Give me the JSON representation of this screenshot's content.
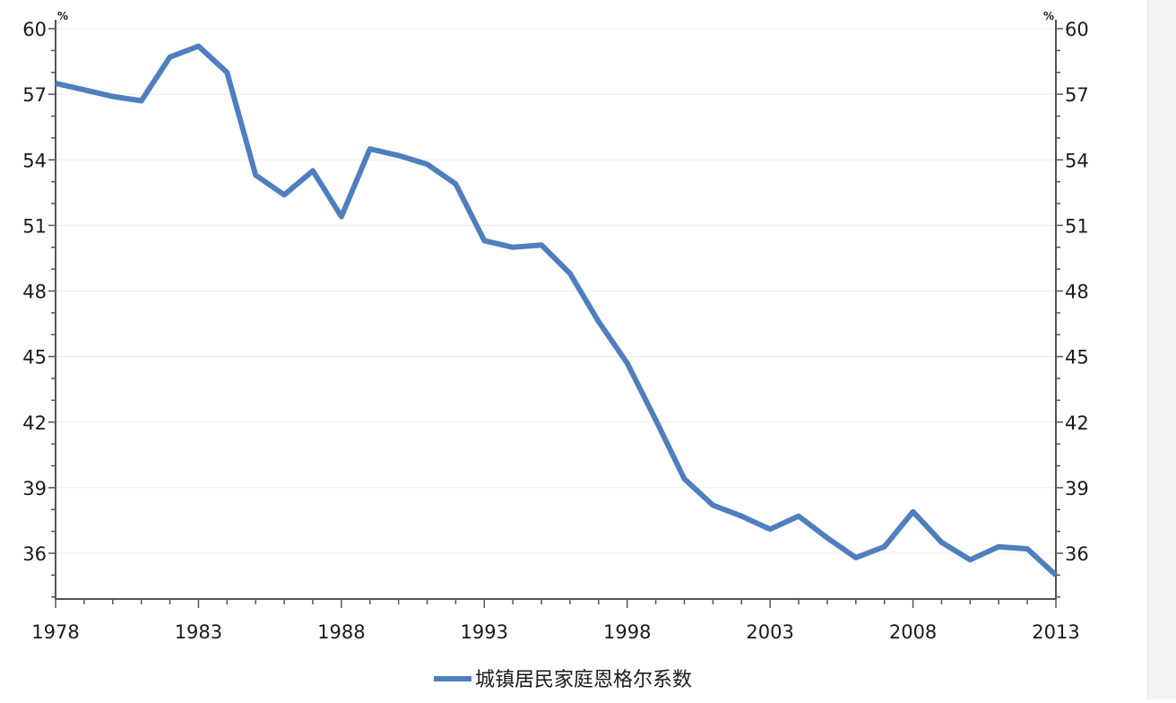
{
  "chart_data": {
    "type": "line",
    "title": "",
    "xlabel": "",
    "ylabel": "",
    "y_unit_left": "%",
    "y_unit_right": "%",
    "xlim": [
      1978,
      2013
    ],
    "ylim": [
      34,
      60.5
    ],
    "x_ticks": [
      1978,
      1983,
      1988,
      1993,
      1998,
      2003,
      2008,
      2013
    ],
    "y_ticks": [
      36,
      39,
      42,
      45,
      48,
      51,
      54,
      57,
      60
    ],
    "grid": "horizontal",
    "legend_position": "bottom",
    "series": [
      {
        "name": "城镇居民家庭恩格尔系数",
        "color": "#4f7fbf",
        "x": [
          1978,
          1979,
          1980,
          1981,
          1982,
          1983,
          1984,
          1985,
          1986,
          1987,
          1988,
          1989,
          1990,
          1991,
          1992,
          1993,
          1994,
          1995,
          1996,
          1997,
          1998,
          1999,
          2000,
          2001,
          2002,
          2003,
          2004,
          2005,
          2006,
          2007,
          2008,
          2009,
          2010,
          2011,
          2012,
          2013
        ],
        "values": [
          57.5,
          57.2,
          56.9,
          56.7,
          58.7,
          59.2,
          58.0,
          53.3,
          52.4,
          53.5,
          51.4,
          54.5,
          54.2,
          53.8,
          52.9,
          50.3,
          50.0,
          50.1,
          48.8,
          46.6,
          44.7,
          42.1,
          39.4,
          38.2,
          37.7,
          37.1,
          37.7,
          36.7,
          35.8,
          36.3,
          37.9,
          36.5,
          35.7,
          36.3,
          36.2,
          35.0
        ]
      }
    ]
  }
}
